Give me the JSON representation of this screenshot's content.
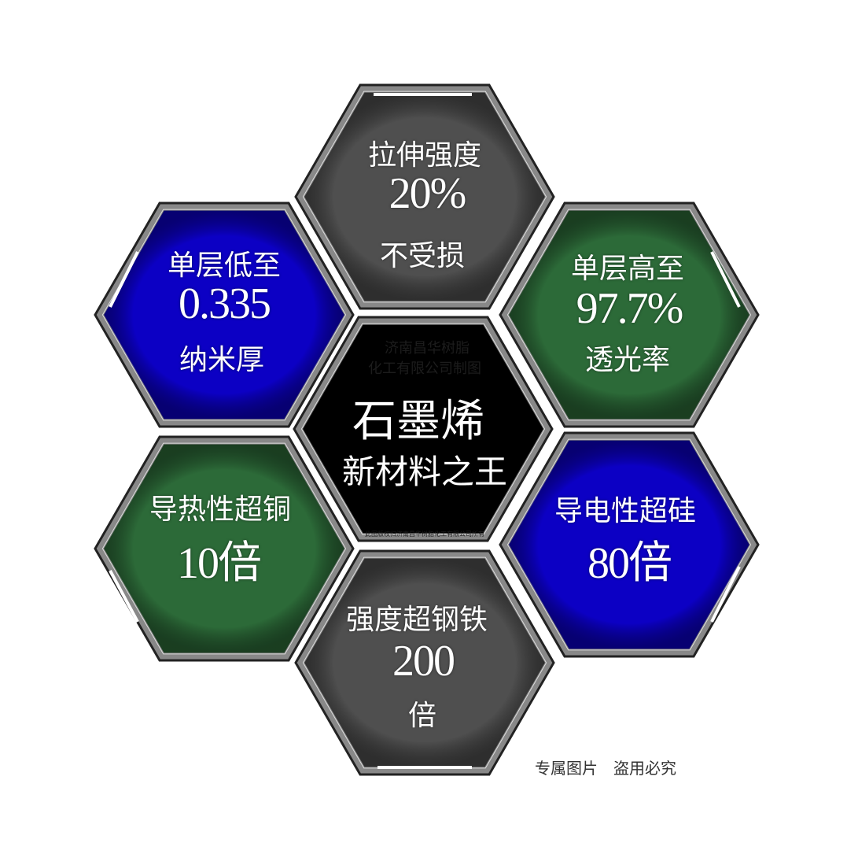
{
  "colors": {
    "gray": "#4f4f4f",
    "blue": "#0c00c4",
    "green": "#2c6a38",
    "center": "#000000"
  },
  "hexes": {
    "top": {
      "line1": "拉伸强度",
      "line2": "20%",
      "line3": "不受损"
    },
    "top_left": {
      "line1": "单层低至",
      "line2": "0.335",
      "line3": "纳米厚"
    },
    "top_right": {
      "line1": "单层高至",
      "line2": "97.7%",
      "line3": "透光率"
    },
    "center": {
      "title": "石墨烯",
      "subtitle": "新材料之王",
      "watermark1": "济南昌华树脂",
      "watermark2": "化工有限公司制图",
      "copyright": "此图版权归济南昌华树脂化工有限公司所有"
    },
    "bottom_left": {
      "line1": "导热性超铜",
      "line2": "10倍"
    },
    "bottom_right": {
      "line1": "导电性超硅",
      "line2": "80倍"
    },
    "bottom": {
      "line1": "强度超钢铁",
      "line2": "200",
      "line3": "倍"
    }
  },
  "footer": "专属图片　盗用必究"
}
